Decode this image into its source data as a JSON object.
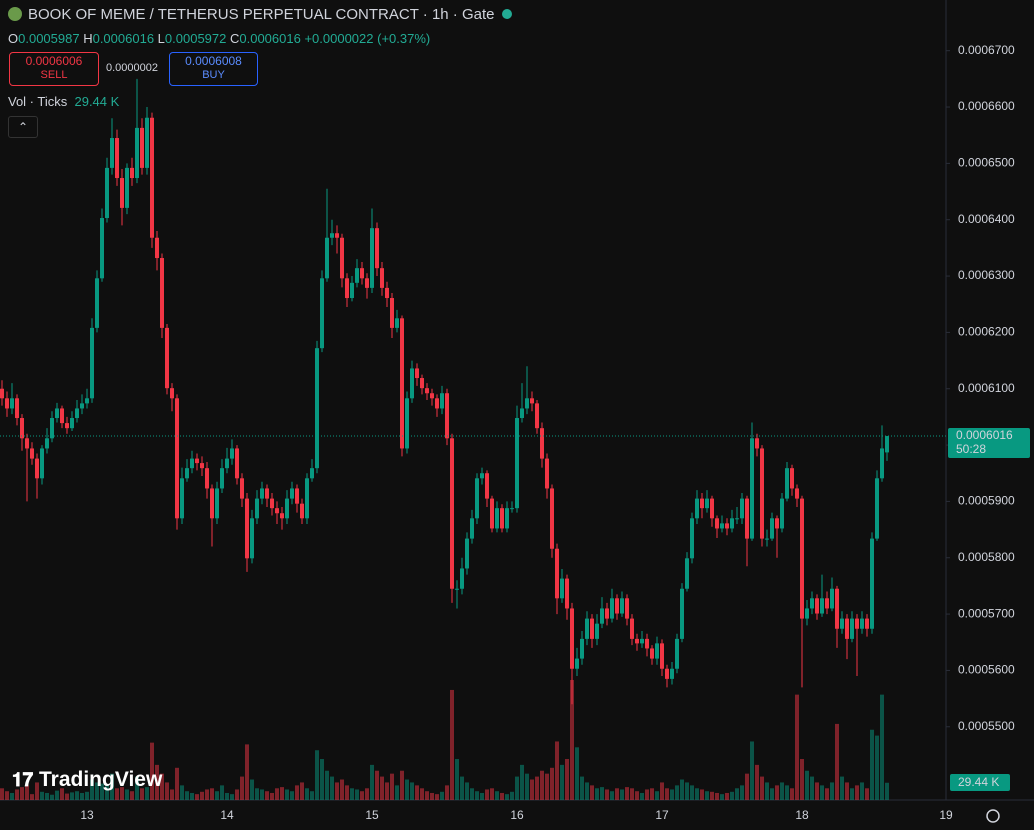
{
  "ui": {
    "title": "BOOK OF MEME / TETHERUS PERPETUAL CONTRACT · 1h · Gate",
    "o_key": "O",
    "o_val": "0.0005987",
    "h_key": "H",
    "h_val": "0.0006016",
    "l_key": "L",
    "l_val": "0.0005972",
    "c_key": "C",
    "c_val": "0.0006016",
    "change": "+0.0000022 (+0.37%)",
    "sell_price": "0.0006006",
    "sell": "SELL",
    "spread": "0.0000002",
    "buy_price": "0.0006008",
    "buy": "BUY",
    "vol_title": "Vol · Ticks",
    "vol_value": "29.44 K",
    "countdown": "50:28",
    "vol_axis_label": "29.44 K",
    "logo": "TradingView",
    "x_cut_label": "19"
  },
  "chart_data": {
    "type": "candlestick",
    "up_color": "#089981",
    "down_color": "#f23645",
    "grid": false,
    "ylim": [
      0.000537,
      0.000679
    ],
    "yticks": [
      {
        "value": 0.00055,
        "label": "0.0005500"
      },
      {
        "value": 0.00056,
        "label": "0.0005600"
      },
      {
        "value": 0.00057,
        "label": "0.0005700"
      },
      {
        "value": 0.00058,
        "label": "0.0005800"
      },
      {
        "value": 0.00059,
        "label": "0.0005900"
      },
      {
        "value": 0.0006,
        "label": "0.0006000"
      },
      {
        "value": 0.00061,
        "label": "0.0006100"
      },
      {
        "value": 0.00062,
        "label": "0.0006200"
      },
      {
        "value": 0.00063,
        "label": "0.0006300"
      },
      {
        "value": 0.00064,
        "label": "0.0006400"
      },
      {
        "value": 0.00065,
        "label": "0.0006500"
      },
      {
        "value": 0.00066,
        "label": "0.0006600"
      },
      {
        "value": 0.00067,
        "label": "0.0006700"
      }
    ],
    "categories": [
      null,
      null,
      null,
      null,
      null,
      null,
      null,
      null,
      null,
      null,
      null,
      null,
      null,
      null,
      null,
      null,
      null,
      "13",
      null,
      null,
      null,
      null,
      null,
      null,
      null,
      null,
      null,
      null,
      null,
      null,
      null,
      null,
      null,
      null,
      null,
      null,
      null,
      null,
      null,
      null,
      null,
      null,
      null,
      null,
      null,
      "14",
      null,
      null,
      null,
      null,
      null,
      null,
      null,
      null,
      null,
      null,
      null,
      null,
      null,
      null,
      null,
      null,
      null,
      null,
      null,
      null,
      null,
      null,
      null,
      null,
      null,
      null,
      null,
      null,
      "15",
      null,
      null,
      null,
      null,
      null,
      null,
      null,
      null,
      null,
      null,
      null,
      null,
      null,
      null,
      null,
      null,
      null,
      null,
      null,
      null,
      null,
      null,
      null,
      null,
      null,
      null,
      null,
      null,
      "16",
      null,
      null,
      null,
      null,
      null,
      null,
      null,
      null,
      null,
      null,
      null,
      null,
      null,
      null,
      null,
      null,
      null,
      null,
      null,
      null,
      null,
      null,
      null,
      null,
      null,
      null,
      null,
      null,
      "17",
      null,
      null,
      null,
      null,
      null,
      null,
      null,
      null,
      null,
      null,
      null,
      null,
      null,
      null,
      null,
      null,
      null,
      null,
      null,
      null,
      null,
      null,
      null,
      null,
      null,
      null,
      null,
      "18",
      null,
      null,
      null,
      null,
      null,
      null,
      null,
      null,
      null,
      null,
      null,
      null,
      null,
      null,
      null,
      null,
      null
    ],
    "open": [
      0.00061,
      0.0006083,
      0.0006065,
      0.0006083,
      0.0006048,
      0.0006012,
      0.0005994,
      0.0005976,
      0.0005941,
      0.0005994,
      0.0006012,
      0.0006048,
      0.0006065,
      0.0006039,
      0.000603,
      0.0006048,
      0.0006065,
      0.0006074,
      0.0006083,
      0.0006208,
      0.0006296,
      0.0006403,
      0.0006492,
      0.0006545,
      0.0006474,
      0.0006421,
      0.0006492,
      0.0006474,
      0.0006563,
      0.0006492,
      0.0006581,
      0.0006368,
      0.0006332,
      0.0006208,
      0.0006101,
      0.0006083,
      0.000587,
      0.0005941,
      0.0005959,
      0.0005976,
      0.0005968,
      0.0005959,
      0.0005923,
      0.000587,
      0.0005923,
      0.0005959,
      0.0005976,
      0.0005994,
      0.0005941,
      0.0005905,
      0.0005799,
      0.000587,
      0.0005905,
      0.0005923,
      0.0005905,
      0.0005888,
      0.0005879,
      0.000587,
      0.0005905,
      0.0005923,
      0.0005896,
      0.000587,
      0.0005941,
      0.0005959,
      0.0006172,
      0.0006296,
      0.0006368,
      0.0006376,
      0.0006368,
      0.0006296,
      0.0006261,
      0.0006288,
      0.0006314,
      0.0006296,
      0.0006279,
      0.0006385,
      0.0006314,
      0.0006279,
      0.0006261,
      0.0006208,
      0.0006225,
      0.0005994,
      0.0006083,
      0.0006136,
      0.0006119,
      0.0006101,
      0.0006092,
      0.0006083,
      0.0006065,
      0.0006092,
      0.0006012,
      0.0005745,
      0.0005745,
      0.0005781,
      0.0005834,
      0.000587,
      0.0005941,
      0.000595,
      0.0005905,
      0.0005852,
      0.0005888,
      0.0005852,
      0.0005888,
      0.0005888,
      0.0006048,
      0.0006065,
      0.0006083,
      0.0006074,
      0.000603,
      0.0005976,
      0.0005923,
      0.0005816,
      0.0005728,
      0.0005763,
      0.000571,
      0.0005603,
      0.0005621,
      0.0005656,
      0.0005692,
      0.0005656,
      0.0005683,
      0.000571,
      0.0005692,
      0.0005728,
      0.0005701,
      0.0005728,
      0.0005692,
      0.0005656,
      0.0005648,
      0.0005656,
      0.0005639,
      0.0005621,
      0.0005648,
      0.0005603,
      0.0005585,
      0.0005603,
      0.0005656,
      0.0005745,
      0.0005799,
      0.000587,
      0.0005905,
      0.0005888,
      0.0005905,
      0.000587,
      0.0005852,
      0.0005861,
      0.0005852,
      0.000587,
      0.000587,
      0.0005905,
      0.0005834,
      0.0006012,
      0.0005994,
      0.0005834,
      0.0005834,
      0.000587,
      0.0005852,
      0.0005905,
      0.0005959,
      0.0005923,
      0.0005905,
      0.0005692,
      0.000571,
      0.0005728,
      0.0005701,
      0.0005728,
      0.000571,
      0.0005745,
      0.0005674,
      0.0005692,
      0.0005656,
      0.0005692,
      0.0005674,
      0.0005692,
      0.0005674,
      0.0005834,
      0.0005941,
      0.0005987
    ],
    "high": [
      0.0006115,
      0.0006095,
      0.000611,
      0.000609,
      0.0006055,
      0.000602,
      0.0006005,
      0.0005985,
      0.0006,
      0.000603,
      0.000606,
      0.0006075,
      0.000607,
      0.000605,
      0.000606,
      0.000608,
      0.000609,
      0.00061,
      0.0006225,
      0.000631,
      0.000642,
      0.000651,
      0.000658,
      0.000656,
      0.000649,
      0.00065,
      0.000651,
      0.000665,
      0.000658,
      0.00066,
      0.000659,
      0.000638,
      0.000634,
      0.0006215,
      0.000611,
      0.000609,
      0.000596,
      0.0005975,
      0.000599,
      0.0005985,
      0.000598,
      0.000597,
      0.000593,
      0.0005935,
      0.0005975,
      0.0005995,
      0.000601,
      0.0006,
      0.000595,
      0.0005915,
      0.0005885,
      0.000592,
      0.0005935,
      0.000593,
      0.0005915,
      0.00059,
      0.000589,
      0.000592,
      0.0005935,
      0.000593,
      0.0005905,
      0.000595,
      0.0005975,
      0.0006185,
      0.000631,
      0.0006455,
      0.00064,
      0.000639,
      0.0006375,
      0.0006305,
      0.00063,
      0.000633,
      0.0006325,
      0.0006305,
      0.000642,
      0.0006395,
      0.0006325,
      0.000629,
      0.000627,
      0.000624,
      0.000623,
      0.0006095,
      0.000615,
      0.0006145,
      0.0006125,
      0.000611,
      0.00061,
      0.000609,
      0.0006105,
      0.00061,
      0.000602,
      0.000576,
      0.00058,
      0.0005845,
      0.0005885,
      0.000595,
      0.000596,
      0.0005955,
      0.000591,
      0.00059,
      0.0005895,
      0.00059,
      0.00059,
      0.000607,
      0.000611,
      0.000614,
      0.0006095,
      0.000608,
      0.000604,
      0.0005985,
      0.000593,
      0.0005825,
      0.000578,
      0.000577,
      0.000572,
      0.000564,
      0.000567,
      0.0005705,
      0.00057,
      0.00057,
      0.000573,
      0.000572,
      0.0005745,
      0.0005735,
      0.000574,
      0.0005735,
      0.00057,
      0.0005665,
      0.000567,
      0.0005665,
      0.0005645,
      0.000566,
      0.0005655,
      0.000561,
      0.0005615,
      0.0005665,
      0.0005755,
      0.000581,
      0.000588,
      0.000592,
      0.0005915,
      0.000592,
      0.000591,
      0.0005875,
      0.0005875,
      0.000587,
      0.0005885,
      0.000589,
      0.0005915,
      0.000591,
      0.000604,
      0.000602,
      0.0006,
      0.000585,
      0.000588,
      0.0005875,
      0.0005915,
      0.000597,
      0.0005965,
      0.000593,
      0.000591,
      0.0005725,
      0.000574,
      0.0005735,
      0.000577,
      0.000574,
      0.0005765,
      0.000575,
      0.0005705,
      0.00057,
      0.0005705,
      0.00057,
      0.0005705,
      0.00057,
      0.0005845,
      0.0005955,
      0.0006035,
      0.0006016
    ],
    "low": [
      0.000607,
      0.000605,
      0.0006055,
      0.0006035,
      0.000599,
      0.00059,
      0.0005965,
      0.0005905,
      0.000593,
      0.0005985,
      0.0006005,
      0.000604,
      0.000603,
      0.000602,
      0.0006025,
      0.000604,
      0.0006055,
      0.0006065,
      0.0006075,
      0.00062,
      0.000629,
      0.0006395,
      0.000648,
      0.000646,
      0.000639,
      0.000641,
      0.000646,
      0.0006465,
      0.000648,
      0.000648,
      0.000635,
      0.000631,
      0.000619,
      0.000609,
      0.000606,
      0.000585,
      0.000586,
      0.0005935,
      0.000595,
      0.0005955,
      0.0005945,
      0.0005905,
      0.000582,
      0.000586,
      0.0005915,
      0.000595,
      0.0005965,
      0.000593,
      0.000589,
      0.0005775,
      0.000579,
      0.000586,
      0.0005895,
      0.000589,
      0.0005875,
      0.000586,
      0.000585,
      0.000586,
      0.0005895,
      0.000588,
      0.000586,
      0.000586,
      0.0005935,
      0.000595,
      0.0006165,
      0.000629,
      0.0006355,
      0.000634,
      0.000628,
      0.0006245,
      0.0006255,
      0.000628,
      0.0006285,
      0.000626,
      0.000627,
      0.00063,
      0.0006265,
      0.0006245,
      0.000619,
      0.00062,
      0.000598,
      0.0005985,
      0.0006075,
      0.0006105,
      0.000609,
      0.000608,
      0.000607,
      0.000605,
      0.0006055,
      0.0006,
      0.000572,
      0.000571,
      0.0005735,
      0.000577,
      0.0005825,
      0.000586,
      0.000593,
      0.000589,
      0.0005845,
      0.0005845,
      0.0005845,
      0.0005845,
      0.000588,
      0.000588,
      0.000604,
      0.0006055,
      0.000606,
      0.000602,
      0.000596,
      0.0005905,
      0.00058,
      0.00057,
      0.000572,
      0.000569,
      0.000554,
      0.000559,
      0.000561,
      0.0005645,
      0.000564,
      0.0005645,
      0.0005675,
      0.000568,
      0.0005685,
      0.000569,
      0.0005695,
      0.000568,
      0.0005645,
      0.0005635,
      0.000564,
      0.0005625,
      0.000561,
      0.000561,
      0.000559,
      0.000557,
      0.0005575,
      0.0005595,
      0.000565,
      0.000574,
      0.000579,
      0.000586,
      0.000587,
      0.000588,
      0.0005855,
      0.0005835,
      0.0005845,
      0.000584,
      0.0005845,
      0.000586,
      0.000586,
      0.0005785,
      0.000583,
      0.000598,
      0.000582,
      0.000582,
      0.000583,
      0.00058,
      0.0005845,
      0.00059,
      0.000591,
      0.000589,
      0.000557,
      0.000568,
      0.00057,
      0.000569,
      0.0005695,
      0.00057,
      0.0005705,
      0.000564,
      0.0005665,
      0.000562,
      0.000565,
      0.000559,
      0.0005665,
      0.000566,
      0.0005665,
      0.000583,
      0.0005935,
      0.0005972
    ],
    "close": [
      0.0006083,
      0.0006065,
      0.0006083,
      0.0006048,
      0.0006012,
      0.0005994,
      0.0005976,
      0.0005941,
      0.0005994,
      0.0006012,
      0.0006048,
      0.0006065,
      0.0006039,
      0.000603,
      0.0006048,
      0.0006065,
      0.0006074,
      0.0006083,
      0.0006208,
      0.0006296,
      0.0006403,
      0.0006492,
      0.0006545,
      0.0006474,
      0.0006421,
      0.0006492,
      0.0006474,
      0.0006563,
      0.0006492,
      0.0006581,
      0.0006368,
      0.0006332,
      0.0006208,
      0.0006101,
      0.0006083,
      0.000587,
      0.0005941,
      0.0005959,
      0.0005976,
      0.0005968,
      0.0005959,
      0.0005923,
      0.000587,
      0.0005923,
      0.0005959,
      0.0005976,
      0.0005994,
      0.0005941,
      0.0005905,
      0.0005799,
      0.000587,
      0.0005905,
      0.0005923,
      0.0005905,
      0.0005888,
      0.0005879,
      0.000587,
      0.0005905,
      0.0005923,
      0.0005896,
      0.000587,
      0.0005941,
      0.0005959,
      0.0006172,
      0.0006296,
      0.0006368,
      0.0006376,
      0.0006368,
      0.0006296,
      0.0006261,
      0.0006288,
      0.0006314,
      0.0006296,
      0.0006279,
      0.0006385,
      0.0006314,
      0.0006279,
      0.0006261,
      0.0006208,
      0.0006225,
      0.0005994,
      0.0006083,
      0.0006136,
      0.0006119,
      0.0006101,
      0.0006092,
      0.0006083,
      0.0006065,
      0.0006092,
      0.0006012,
      0.0005745,
      0.0005745,
      0.0005781,
      0.0005834,
      0.000587,
      0.0005941,
      0.000595,
      0.0005905,
      0.0005852,
      0.0005888,
      0.0005852,
      0.0005888,
      0.0005888,
      0.0006048,
      0.0006065,
      0.0006083,
      0.0006074,
      0.000603,
      0.0005976,
      0.0005923,
      0.0005816,
      0.0005728,
      0.0005763,
      0.000571,
      0.0005603,
      0.0005621,
      0.0005656,
      0.0005692,
      0.0005656,
      0.0005683,
      0.000571,
      0.0005692,
      0.0005728,
      0.0005701,
      0.0005728,
      0.0005692,
      0.0005656,
      0.0005648,
      0.0005656,
      0.0005639,
      0.0005621,
      0.0005648,
      0.0005603,
      0.0005585,
      0.0005603,
      0.0005656,
      0.0005745,
      0.0005799,
      0.000587,
      0.0005905,
      0.0005888,
      0.0005905,
      0.000587,
      0.0005852,
      0.0005861,
      0.0005852,
      0.000587,
      0.000587,
      0.0005905,
      0.0005834,
      0.0006012,
      0.0005994,
      0.0005834,
      0.0005834,
      0.000587,
      0.0005852,
      0.0005905,
      0.0005959,
      0.0005923,
      0.0005905,
      0.0005692,
      0.000571,
      0.0005728,
      0.0005701,
      0.0005728,
      0.000571,
      0.0005745,
      0.0005674,
      0.0005692,
      0.0005656,
      0.0005692,
      0.0005674,
      0.0005692,
      0.0005674,
      0.0005834,
      0.0005941,
      0.0005994,
      0.0006016
    ],
    "volume": [
      20000,
      15000,
      12000,
      18000,
      22000,
      25000,
      10000,
      30000,
      14000,
      12000,
      9000,
      16000,
      20000,
      11000,
      13000,
      15000,
      12000,
      14000,
      35000,
      30000,
      28000,
      25000,
      45000,
      20000,
      22000,
      18000,
      15000,
      40000,
      20000,
      22000,
      98000,
      60000,
      45000,
      30000,
      18000,
      55000,
      25000,
      15000,
      12000,
      10000,
      14000,
      18000,
      20000,
      15000,
      25000,
      12000,
      10000,
      18000,
      40000,
      95000,
      35000,
      20000,
      18000,
      15000,
      12000,
      20000,
      22000,
      18000,
      15000,
      25000,
      30000,
      20000,
      15000,
      85000,
      70000,
      50000,
      40000,
      30000,
      35000,
      25000,
      20000,
      18000,
      15000,
      20000,
      60000,
      50000,
      40000,
      30000,
      45000,
      25000,
      50000,
      35000,
      30000,
      25000,
      20000,
      15000,
      12000,
      10000,
      14000,
      25000,
      188000,
      70000,
      40000,
      30000,
      20000,
      15000,
      12000,
      18000,
      20000,
      15000,
      12000,
      10000,
      14000,
      40000,
      60000,
      45000,
      35000,
      40000,
      50000,
      45000,
      55000,
      100000,
      60000,
      70000,
      205000,
      90000,
      40000,
      30000,
      25000,
      20000,
      22000,
      18000,
      15000,
      20000,
      18000,
      22000,
      20000,
      15000,
      12000,
      18000,
      20000,
      15000,
      30000,
      20000,
      18000,
      25000,
      35000,
      30000,
      25000,
      20000,
      18000,
      15000,
      14000,
      12000,
      10000,
      12000,
      14000,
      20000,
      25000,
      45000,
      100000,
      60000,
      40000,
      30000,
      20000,
      25000,
      30000,
      25000,
      20000,
      180000,
      70000,
      50000,
      40000,
      30000,
      25000,
      20000,
      30000,
      130000,
      40000,
      30000,
      20000,
      25000,
      30000,
      20000,
      120000,
      110000,
      180000,
      29440
    ]
  }
}
